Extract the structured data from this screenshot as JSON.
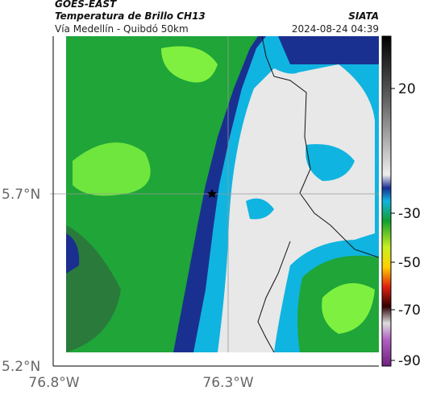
{
  "header": {
    "source": "GOES-EAST",
    "product": "Temperatura de Brillo CH13",
    "region": "Vía Medellín - Quibdó 50km",
    "agency": "SIATA",
    "timestamp": "2024-08-24 04:39"
  },
  "axes": {
    "lat_labels": [
      "5.7°N",
      "5.2°N"
    ],
    "lon_labels": [
      "76.8°W",
      "76.3°W"
    ]
  },
  "colorbar": {
    "tick_labels": [
      20,
      -30,
      -50,
      -70,
      -90
    ]
  }
}
